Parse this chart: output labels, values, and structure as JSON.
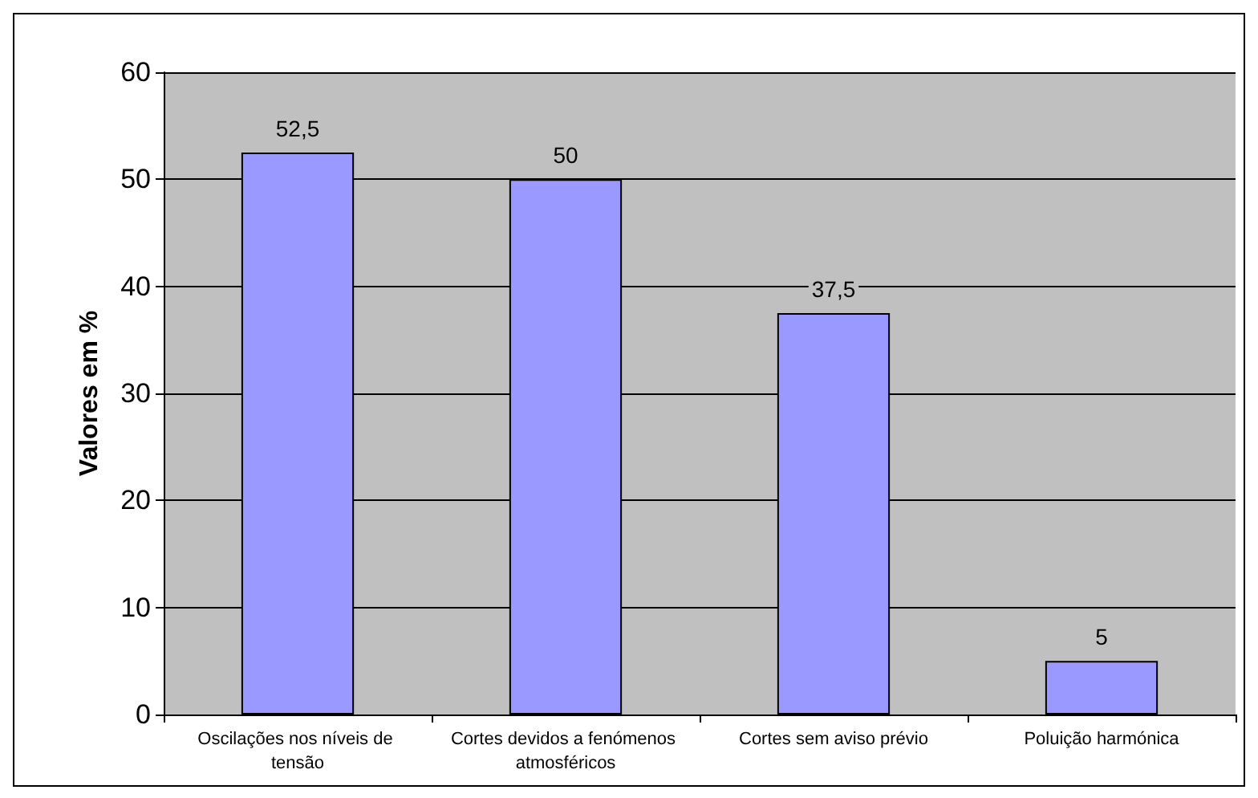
{
  "chart_data": {
    "type": "bar",
    "ylabel": "Valores em %",
    "categories": [
      "Oscilações nos níveis de tensão",
      "Cortes devidos a fenómenos atmosféricos",
      "Cortes sem aviso prévio",
      "Poluição harmónica"
    ],
    "values": [
      52.5,
      50,
      37.5,
      5
    ],
    "value_labels": [
      "52,5",
      "50",
      "37,5",
      "5"
    ],
    "color": "#9999ff",
    "ylim": [
      0,
      60
    ],
    "yticks": [
      0,
      10,
      20,
      30,
      40,
      50,
      60
    ],
    "grid": "y"
  }
}
